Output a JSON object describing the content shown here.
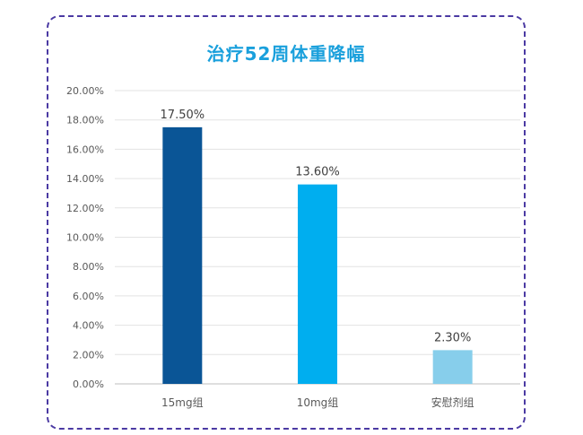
{
  "chart_data": {
    "type": "bar",
    "title": "治疗52周体重降幅",
    "categories": [
      "15mg组",
      "10mg组",
      "安慰剂组"
    ],
    "values": [
      17.5,
      13.6,
      2.3
    ],
    "data_labels": [
      "17.50%",
      "13.60%",
      "2.30%"
    ],
    "colors": [
      "#0a5596",
      "#00aeef",
      "#87ceeb"
    ],
    "ylim": [
      0,
      20
    ],
    "ytick_labels": [
      "0.00%",
      "2.00%",
      "4.00%",
      "6.00%",
      "8.00%",
      "10.00%",
      "12.00%",
      "14.00%",
      "16.00%",
      "18.00%",
      "20.00%"
    ],
    "grid": true,
    "legend": "none"
  }
}
